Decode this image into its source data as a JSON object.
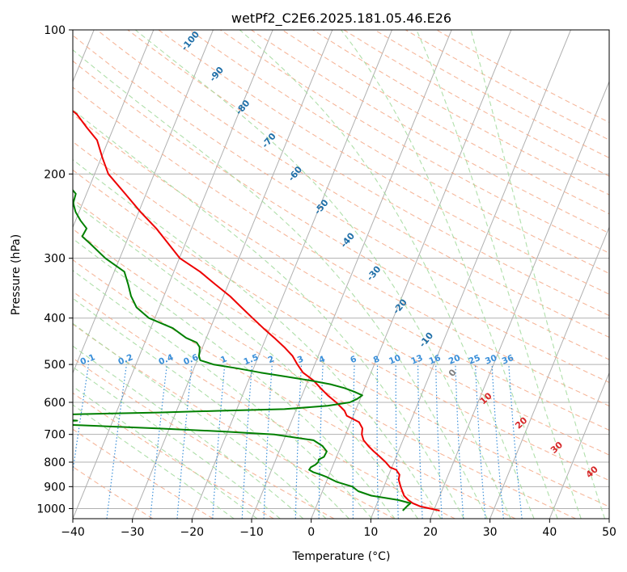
{
  "chart_data": {
    "type": "skew-t",
    "title": "wetPf2_C2E6.2025.181.05.46.E26",
    "xlabel": "Temperature (°C)",
    "ylabel": "Pressure (hPa)",
    "xlim": [
      -40,
      50
    ],
    "ylim": [
      1050,
      100
    ],
    "x_ticks": [
      "−40",
      "−30",
      "−20",
      "−10",
      "0",
      "10",
      "20",
      "30",
      "40",
      "50"
    ],
    "x_tick_values": [
      -40,
      -30,
      -20,
      -10,
      0,
      10,
      20,
      30,
      40,
      50
    ],
    "y_ticks": [
      "100",
      "200",
      "300",
      "400",
      "500",
      "600",
      "700",
      "800",
      "900",
      "1000"
    ],
    "y_tick_values": [
      100,
      200,
      300,
      400,
      500,
      600,
      700,
      800,
      900,
      1000
    ],
    "grid": true,
    "colors": {
      "temperature": "#ee0000",
      "dewpoint": "#008000",
      "isotherm_grid": "#b0b0b0",
      "dry_adiabat": "#f4a582",
      "moist_adiabat": "#a1d99b",
      "mixing_ratio": "#3a8fd9",
      "dry_adiabat_label": "#d62728",
      "moist_adiabat_label": "#1f6fa8",
      "zero_moist_label": "#808080"
    },
    "temperature_series": {
      "p": [
        1010,
        990,
        975,
        960,
        940,
        900,
        870,
        850,
        830,
        820,
        800,
        780,
        760,
        740,
        720,
        700,
        680,
        660,
        640,
        625,
        600,
        580,
        560,
        540,
        520,
        500,
        480,
        460,
        440,
        420,
        400,
        380,
        360,
        340,
        320,
        300,
        280,
        260,
        240,
        220,
        200,
        185,
        170,
        160,
        150,
        140,
        130,
        125,
        120,
        110,
        100
      ],
      "t": [
        21,
        17.5,
        16,
        15,
        14,
        12.8,
        12,
        11.8,
        10.9,
        9.7,
        8.6,
        7.3,
        5.9,
        4.6,
        3.4,
        2.7,
        2.4,
        1.4,
        -1.1,
        -1.8,
        -3.8,
        -5.7,
        -7.4,
        -9.1,
        -11.4,
        -12.9,
        -14.3,
        -16.3,
        -18.6,
        -21.1,
        -23.6,
        -26.2,
        -28.9,
        -32.2,
        -35.6,
        -39.9,
        -42.8,
        -45.9,
        -49.7,
        -53.5,
        -57.7,
        -59.8,
        -61.9,
        -64.5,
        -67.1,
        -71.1,
        -76.4,
        -78.9,
        -81.4,
        -86.7,
        -92.2
      ]
    },
    "dewpoint_series": {
      "p": [
        1010,
        990,
        975,
        960,
        940,
        920,
        900,
        880,
        860,
        850,
        840,
        830,
        820,
        810,
        800,
        790,
        780,
        760,
        740,
        720,
        700,
        690,
        680,
        670,
        665,
        660,
        655,
        650,
        645,
        642,
        640,
        635,
        630,
        625,
        620,
        610,
        600,
        590,
        580,
        570,
        560,
        550,
        540,
        530,
        520,
        510,
        500,
        490,
        480,
        470,
        460,
        450,
        440,
        420,
        400,
        380,
        360,
        340,
        320,
        300,
        280,
        270,
        260,
        250,
        240,
        230,
        220,
        210,
        200,
        190,
        180,
        175,
        170,
        160,
        150,
        140,
        130,
        120,
        110,
        100
      ],
      "td": [
        14.8,
        15.2,
        15.6,
        13.3,
        8.5,
        6.0,
        4.7,
        1.8,
        -0.2,
        -1.4,
        -2.8,
        -3.7,
        -3.6,
        -3.0,
        -2.7,
        -2.8,
        -2.1,
        -2.0,
        -3.1,
        -5.0,
        -12.0,
        -21.0,
        -32.0,
        -45.0,
        -53.0,
        -52.0,
        -46.0,
        -51.0,
        -56.0,
        -58.0,
        -56.0,
        -46.0,
        -33.0,
        -23.0,
        -12.0,
        -5.0,
        -1.5,
        -0.5,
        0.1,
        -1.5,
        -3.4,
        -6.0,
        -9.7,
        -14.0,
        -18.5,
        -22.5,
        -27.0,
        -29.5,
        -30.0,
        -30.2,
        -30.5,
        -31.3,
        -33.4,
        -36.3,
        -41.0,
        -43.8,
        -45.5,
        -46.8,
        -48.3,
        -52.4,
        -55.9,
        -57.8,
        -57.6,
        -59.2,
        -60.6,
        -61.6,
        -61.8,
        -63.8,
        -65.9,
        -69.1,
        -72.2,
        -76.2,
        -77.3,
        -78.0,
        -80.5,
        -81.8,
        -86.0,
        -87.9,
        -90.1,
        -94.7
      ]
    },
    "dry_adiabat_labels": [
      "10",
      "20",
      "30",
      "40"
    ],
    "dry_adiabat_label_values": [
      10,
      20,
      30,
      40
    ],
    "moist_adiabat_labels": [
      "-100",
      "-90",
      "-80",
      "-70",
      "-60",
      "-50",
      "-40",
      "-30",
      "-20",
      "-10",
      "0"
    ],
    "moist_adiabat_label_values": [
      -100,
      -90,
      -80,
      -70,
      -60,
      -50,
      -40,
      -30,
      -20,
      -10,
      0
    ],
    "mixing_ratio_labels": [
      "0.1",
      "0.2",
      "0.4",
      "0.6",
      "1",
      "1.5",
      "2",
      "3",
      "4",
      "6",
      "8",
      "10",
      "13",
      "16",
      "20",
      "25",
      "30",
      "36"
    ],
    "mixing_ratio_label_values": [
      0.1,
      0.2,
      0.4,
      0.6,
      1,
      1.5,
      2,
      3,
      4,
      6,
      8,
      10,
      13,
      16,
      20,
      25,
      30,
      36
    ]
  }
}
